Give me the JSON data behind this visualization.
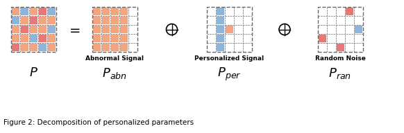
{
  "colors": {
    "orange": "#F4A580",
    "pink": "#E87878",
    "blue": "#8FB4D9",
    "white": "#FFFFFF",
    "bg": "#FFFFFF",
    "grid_border": "#666666"
  },
  "P_matrix": [
    [
      "orange",
      "blue",
      "orange",
      "pink",
      "blue"
    ],
    [
      "blue",
      "orange",
      "pink",
      "orange",
      "orange"
    ],
    [
      "orange",
      "pink",
      "orange",
      "orange",
      "blue"
    ],
    [
      "orange",
      "orange",
      "blue",
      "pink",
      "orange"
    ],
    [
      "pink",
      "orange",
      "orange",
      "blue",
      "orange"
    ]
  ],
  "P_abn_matrix": [
    [
      "orange",
      "orange",
      "orange",
      "orange",
      "white"
    ],
    [
      "orange",
      "orange",
      "orange",
      "orange",
      "white"
    ],
    [
      "orange",
      "orange",
      "orange",
      "orange",
      "white"
    ],
    [
      "orange",
      "orange",
      "orange",
      "orange",
      "white"
    ],
    [
      "orange",
      "orange",
      "orange",
      "orange",
      "white"
    ]
  ],
  "P_per_matrix": [
    [
      "white",
      "blue",
      "white",
      "white",
      "white"
    ],
    [
      "white",
      "blue",
      "white",
      "white",
      "white"
    ],
    [
      "white",
      "blue",
      "orange",
      "white",
      "white"
    ],
    [
      "white",
      "blue",
      "white",
      "white",
      "white"
    ],
    [
      "white",
      "blue",
      "white",
      "white",
      "white"
    ]
  ],
  "P_ran_matrix": [
    [
      "white",
      "white",
      "white",
      "pink",
      "white"
    ],
    [
      "white",
      "white",
      "white",
      "white",
      "white"
    ],
    [
      "white",
      "white",
      "white",
      "white",
      "blue"
    ],
    [
      "pink",
      "white",
      "white",
      "white",
      "white"
    ],
    [
      "white",
      "white",
      "pink",
      "white",
      "white"
    ]
  ],
  "caption": "Figure 2: Decomposition of personalized parameters",
  "label_abnormal": "Abnormal Signal",
  "label_personalized": "Personalized Signal",
  "label_random": "Random Noise"
}
